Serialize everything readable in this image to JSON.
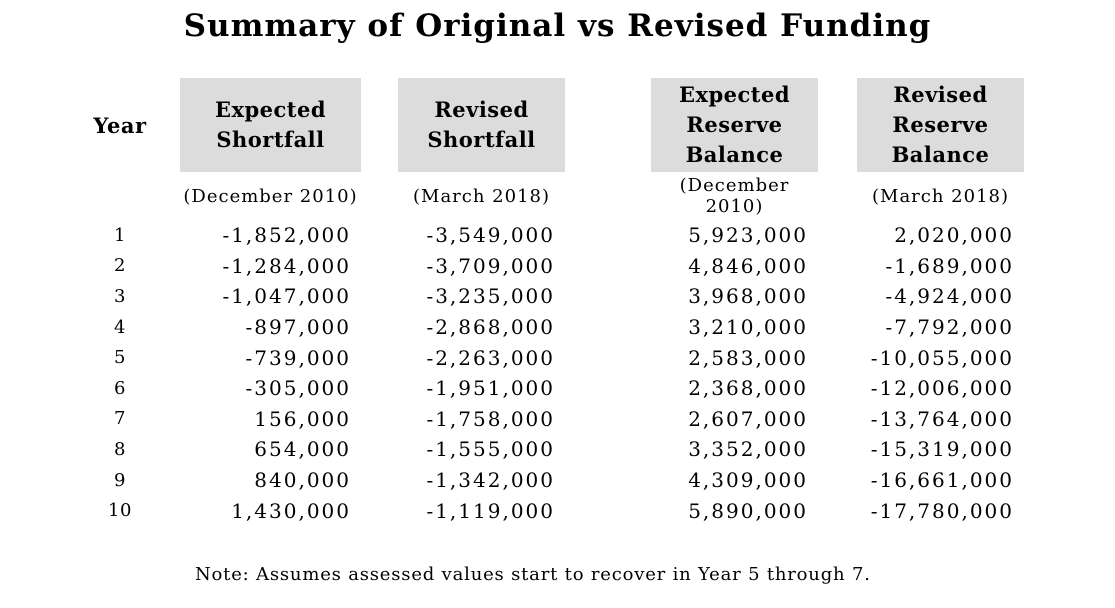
{
  "title": "Summary of Original vs Revised Funding",
  "table": {
    "year_header": "Year",
    "columns": [
      {
        "label": "Expected\nShortfall",
        "sublabel": "(December 2010)"
      },
      {
        "label": "Revised\nShortfall",
        "sublabel": "(March 2018)"
      },
      {
        "label": "Expected\nReserve\nBalance",
        "sublabel": "(December 2010)"
      },
      {
        "label": "Revised\nReserve\nBalance",
        "sublabel": "(March 2018)"
      }
    ],
    "rows": [
      {
        "year": "1",
        "values": [
          "-1,852,000",
          "-3,549,000",
          "5,923,000",
          "2,020,000"
        ]
      },
      {
        "year": "2",
        "values": [
          "-1,284,000",
          "-3,709,000",
          "4,846,000",
          "-1,689,000"
        ]
      },
      {
        "year": "3",
        "values": [
          "-1,047,000",
          "-3,235,000",
          "3,968,000",
          "-4,924,000"
        ]
      },
      {
        "year": "4",
        "values": [
          "-897,000",
          "-2,868,000",
          "3,210,000",
          "-7,792,000"
        ]
      },
      {
        "year": "5",
        "values": [
          "-739,000",
          "-2,263,000",
          "2,583,000",
          "-10,055,000"
        ]
      },
      {
        "year": "6",
        "values": [
          "-305,000",
          "-1,951,000",
          "2,368,000",
          "-12,006,000"
        ]
      },
      {
        "year": "7",
        "values": [
          "156,000",
          "-1,758,000",
          "2,607,000",
          "-13,764,000"
        ]
      },
      {
        "year": "8",
        "values": [
          "654,000",
          "-1,555,000",
          "3,352,000",
          "-15,319,000"
        ]
      },
      {
        "year": "9",
        "values": [
          "840,000",
          "-1,342,000",
          "4,309,000",
          "-16,661,000"
        ]
      },
      {
        "year": "10",
        "values": [
          "1,430,000",
          "-1,119,000",
          "5,890,000",
          "-17,780,000"
        ]
      }
    ]
  },
  "note": "Note: Assumes assessed values start to recover in Year 5 through 7.",
  "colors": {
    "header_box_bg": "#dcdcdc",
    "text": "#000000",
    "page_bg": "#ffffff"
  }
}
